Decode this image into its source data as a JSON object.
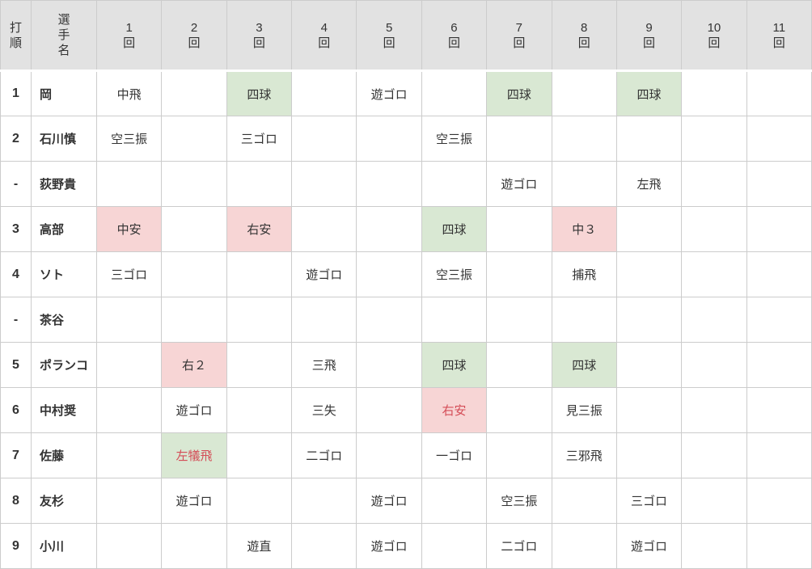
{
  "colors": {
    "header_bg": "#e2e2e2",
    "grid_line": "#cccccc",
    "walk_bg": "#d9e8d3",
    "hit_bg": "#f7d5d5",
    "rbi_text": "#d44d57",
    "text": "#333333"
  },
  "table": {
    "header": {
      "order": "打\n順",
      "player": "選\n手\n名",
      "innings": [
        "1\n回",
        "2\n回",
        "3\n回",
        "4\n回",
        "5\n回",
        "6\n回",
        "7\n回",
        "8\n回",
        "9\n回",
        "10\n回",
        "11\n回"
      ]
    },
    "rows": [
      {
        "order": "1",
        "player": "岡",
        "cells": [
          {
            "t": "中飛"
          },
          null,
          {
            "t": "四球",
            "bg": "green"
          },
          null,
          {
            "t": "遊ゴロ"
          },
          null,
          {
            "t": "四球",
            "bg": "green"
          },
          null,
          {
            "t": "四球",
            "bg": "green"
          },
          null,
          null
        ]
      },
      {
        "order": "2",
        "player": "石川慎",
        "cells": [
          {
            "t": "空三振"
          },
          null,
          {
            "t": "三ゴロ"
          },
          null,
          null,
          {
            "t": "空三振"
          },
          null,
          null,
          null,
          null,
          null
        ]
      },
      {
        "order": "-",
        "player": "荻野貴",
        "cells": [
          null,
          null,
          null,
          null,
          null,
          null,
          {
            "t": "遊ゴロ"
          },
          null,
          {
            "t": "左飛"
          },
          null,
          null
        ]
      },
      {
        "order": "3",
        "player": "高部",
        "cells": [
          {
            "t": "中安",
            "bg": "pink"
          },
          null,
          {
            "t": "右安",
            "bg": "pink"
          },
          null,
          null,
          {
            "t": "四球",
            "bg": "green"
          },
          null,
          {
            "t": "中３",
            "bg": "pink"
          },
          null,
          null,
          null
        ]
      },
      {
        "order": "4",
        "player": "ソト",
        "cells": [
          {
            "t": "三ゴロ"
          },
          null,
          null,
          {
            "t": "遊ゴロ"
          },
          null,
          {
            "t": "空三振"
          },
          null,
          {
            "t": "捕飛"
          },
          null,
          null,
          null
        ]
      },
      {
        "order": "-",
        "player": "茶谷",
        "cells": [
          null,
          null,
          null,
          null,
          null,
          null,
          null,
          null,
          null,
          null,
          null
        ]
      },
      {
        "order": "5",
        "player": "ポランコ",
        "cells": [
          null,
          {
            "t": "右２",
            "bg": "pink"
          },
          null,
          {
            "t": "三飛"
          },
          null,
          {
            "t": "四球",
            "bg": "green"
          },
          null,
          {
            "t": "四球",
            "bg": "green"
          },
          null,
          null,
          null
        ]
      },
      {
        "order": "6",
        "player": "中村奨",
        "cells": [
          null,
          {
            "t": "遊ゴロ"
          },
          null,
          {
            "t": "三失"
          },
          null,
          {
            "t": "右安",
            "bg": "pink",
            "red": true
          },
          null,
          {
            "t": "見三振"
          },
          null,
          null,
          null
        ]
      },
      {
        "order": "7",
        "player": "佐藤",
        "cells": [
          null,
          {
            "t": "左犠飛",
            "bg": "green",
            "red": true
          },
          null,
          {
            "t": "二ゴロ"
          },
          null,
          {
            "t": "一ゴロ"
          },
          null,
          {
            "t": "三邪飛"
          },
          null,
          null,
          null
        ]
      },
      {
        "order": "8",
        "player": "友杉",
        "cells": [
          null,
          {
            "t": "遊ゴロ"
          },
          null,
          null,
          {
            "t": "遊ゴロ"
          },
          null,
          {
            "t": "空三振"
          },
          null,
          {
            "t": "三ゴロ"
          },
          null,
          null
        ]
      },
      {
        "order": "9",
        "player": "小川",
        "cells": [
          null,
          null,
          {
            "t": "遊直"
          },
          null,
          {
            "t": "遊ゴロ"
          },
          null,
          {
            "t": "二ゴロ"
          },
          null,
          {
            "t": "遊ゴロ"
          },
          null,
          null
        ]
      }
    ]
  }
}
